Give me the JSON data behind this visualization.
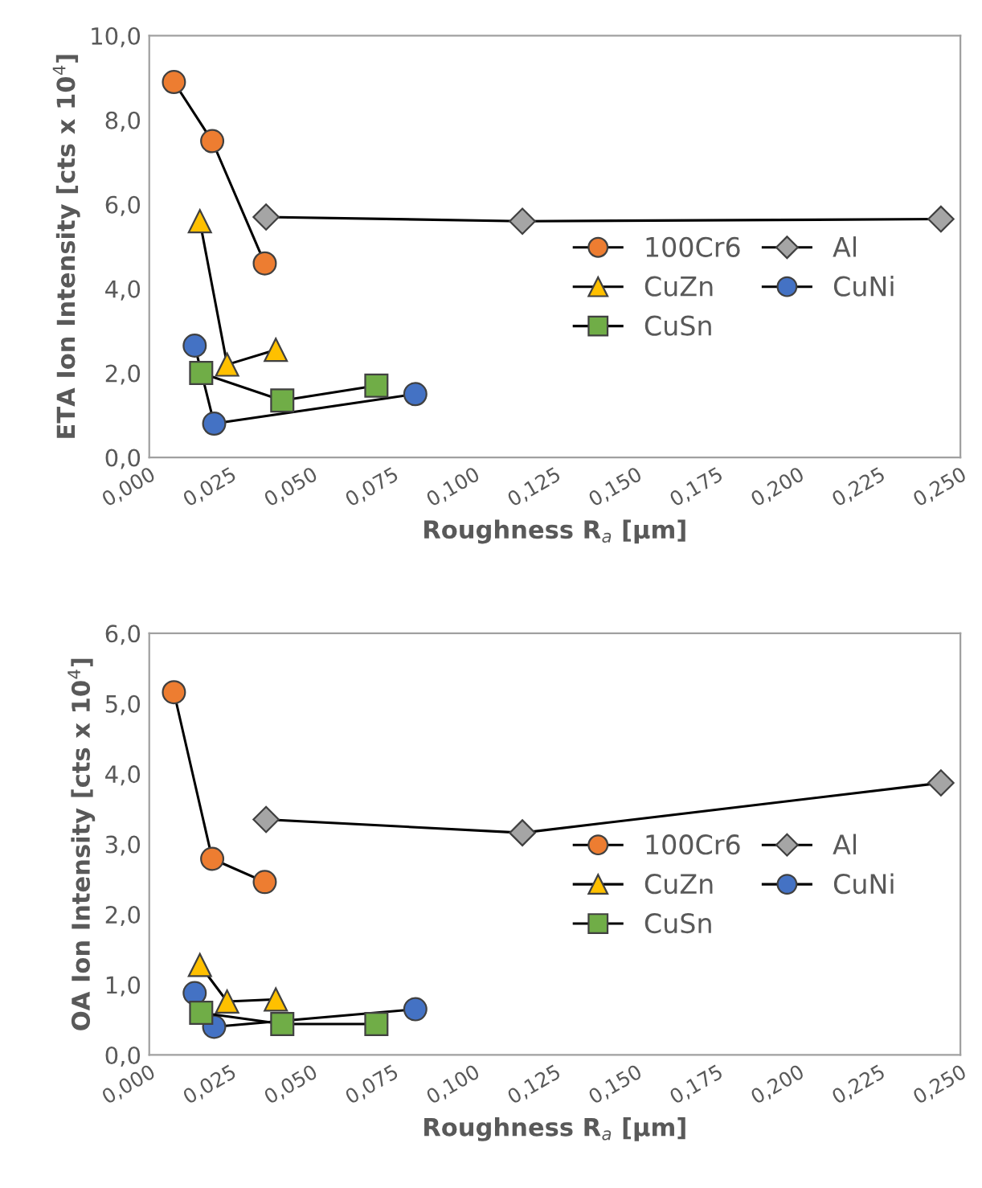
{
  "chart_data": [
    {
      "type": "line",
      "xlabel": "Roughness R$_{a}$ [µm]",
      "ylabel": "ETA Ion Intensity [cts x 10$^{4}$]",
      "legend": "right",
      "grid": false,
      "xlim": [
        0,
        0.25
      ],
      "xticks": [
        {
          "value": 0,
          "label": "0,000"
        },
        {
          "value": 0.025,
          "label": "0,025"
        },
        {
          "value": 0.05,
          "label": "0,050"
        },
        {
          "value": 0.075,
          "label": "0,075"
        },
        {
          "value": 0.1,
          "label": "0,100"
        },
        {
          "value": 0.125,
          "label": "0,125"
        },
        {
          "value": 0.15,
          "label": "0,150"
        },
        {
          "value": 0.175,
          "label": "0,175"
        },
        {
          "value": 0.2,
          "label": "0,200"
        },
        {
          "value": 0.225,
          "label": "0,225"
        },
        {
          "value": 0.25,
          "label": "0,250"
        }
      ],
      "ylim": [
        0,
        10
      ],
      "yticks": [
        {
          "value": 0,
          "label": "0,0"
        },
        {
          "value": 2,
          "label": "2,0"
        },
        {
          "value": 4,
          "label": "4,0"
        },
        {
          "value": 6,
          "label": "6,0"
        },
        {
          "value": 8,
          "label": "8,0"
        },
        {
          "value": 10,
          "label": "10,0"
        }
      ],
      "series": [
        {
          "name": "100Cr6",
          "color": "#ed7d31",
          "marker": "circle",
          "x": [
            0.0076,
            0.0194,
            0.0356
          ],
          "values": [
            8.9,
            7.5,
            4.6
          ]
        },
        {
          "name": "Al",
          "color": "#a5a5a5",
          "marker": "diamond",
          "x": [
            0.036,
            0.115,
            0.244
          ],
          "values": [
            5.7,
            5.6,
            5.65
          ]
        },
        {
          "name": "CuZn",
          "color": "#ffc000",
          "marker": "triangle",
          "x": [
            0.0156,
            0.024,
            0.039
          ],
          "values": [
            5.6,
            2.2,
            2.55
          ]
        },
        {
          "name": "CuNi",
          "color": "#4472c4",
          "marker": "circle",
          "x": [
            0.014,
            0.02,
            0.082
          ],
          "values": [
            2.65,
            0.8,
            1.5
          ]
        },
        {
          "name": "CuSn",
          "color": "#70ad47",
          "marker": "square",
          "x": [
            0.016,
            0.041,
            0.07
          ],
          "values": [
            2.0,
            1.35,
            1.7
          ]
        }
      ]
    },
    {
      "type": "line",
      "xlabel": "Roughness R$_{a}$ [µm]",
      "ylabel": "OA Ion Intensity [cts x 10$^{4}$]",
      "legend": "right",
      "grid": false,
      "xlim": [
        0,
        0.25
      ],
      "xticks": [
        {
          "value": 0,
          "label": "0,000"
        },
        {
          "value": 0.025,
          "label": "0,025"
        },
        {
          "value": 0.05,
          "label": "0,050"
        },
        {
          "value": 0.075,
          "label": "0,075"
        },
        {
          "value": 0.1,
          "label": "0,100"
        },
        {
          "value": 0.125,
          "label": "0,125"
        },
        {
          "value": 0.15,
          "label": "0,150"
        },
        {
          "value": 0.175,
          "label": "0,175"
        },
        {
          "value": 0.2,
          "label": "0,200"
        },
        {
          "value": 0.225,
          "label": "0,225"
        },
        {
          "value": 0.25,
          "label": "0,250"
        }
      ],
      "ylim": [
        0,
        6
      ],
      "yticks": [
        {
          "value": 0,
          "label": "0,0"
        },
        {
          "value": 1,
          "label": "1,0"
        },
        {
          "value": 2,
          "label": "2,0"
        },
        {
          "value": 3,
          "label": "3,0"
        },
        {
          "value": 4,
          "label": "4,0"
        },
        {
          "value": 5,
          "label": "5,0"
        },
        {
          "value": 6,
          "label": "6,0"
        }
      ],
      "series": [
        {
          "name": "100Cr6",
          "color": "#ed7d31",
          "marker": "circle",
          "x": [
            0.0076,
            0.0194,
            0.0356
          ],
          "values": [
            5.16,
            2.79,
            2.46
          ]
        },
        {
          "name": "Al",
          "color": "#a5a5a5",
          "marker": "diamond",
          "x": [
            0.036,
            0.115,
            0.244
          ],
          "values": [
            3.35,
            3.16,
            3.87
          ]
        },
        {
          "name": "CuZn",
          "color": "#ffc000",
          "marker": "triangle",
          "x": [
            0.0156,
            0.024,
            0.039
          ],
          "values": [
            1.28,
            0.76,
            0.79
          ]
        },
        {
          "name": "CuNi",
          "color": "#4472c4",
          "marker": "circle",
          "x": [
            0.014,
            0.02,
            0.082
          ],
          "values": [
            0.88,
            0.4,
            0.65
          ]
        },
        {
          "name": "CuSn",
          "color": "#70ad47",
          "marker": "square",
          "x": [
            0.016,
            0.041,
            0.07
          ],
          "values": [
            0.6,
            0.44,
            0.44
          ]
        }
      ]
    }
  ]
}
